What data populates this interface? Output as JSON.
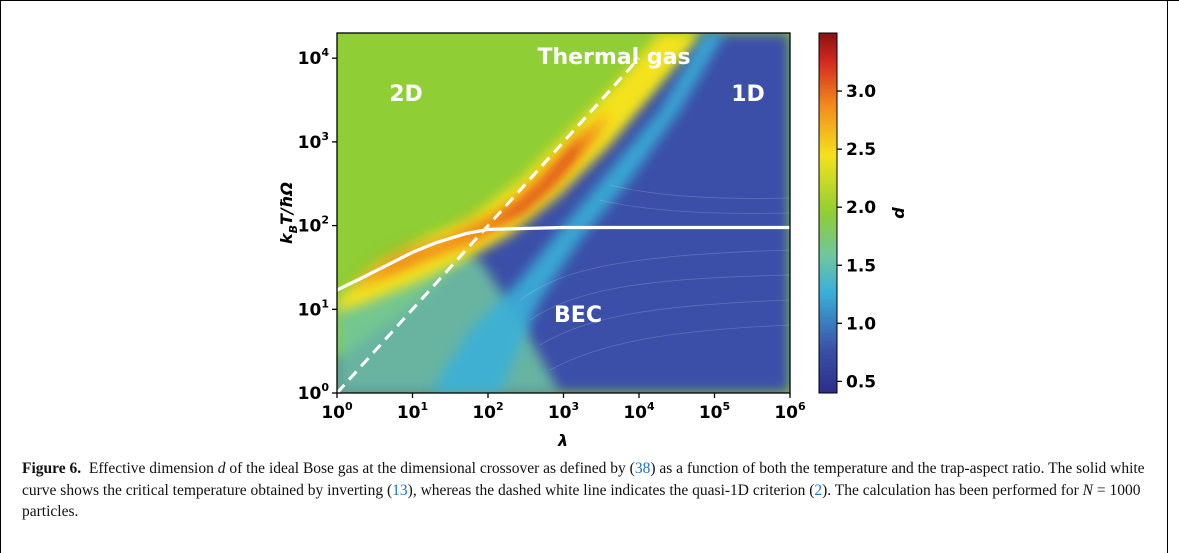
{
  "chart_data": {
    "type": "heatmap",
    "xlabel": "λ",
    "ylabel": "k_B T/ħΩ",
    "colorbar_label": "d",
    "x_scale": "log",
    "y_scale": "log",
    "xlim": [
      1,
      1000000
    ],
    "ylim": [
      1,
      20000
    ],
    "clim": [
      0.4,
      3.5
    ],
    "x_ticks": [
      "10^0",
      "10^1",
      "10^2",
      "10^3",
      "10^4",
      "10^5",
      "10^6"
    ],
    "y_ticks": [
      "10^0",
      "10^1",
      "10^2",
      "10^3",
      "10^4"
    ],
    "colorbar_ticks": [
      "0.5",
      "1.0",
      "1.5",
      "2.0",
      "2.5",
      "3.0"
    ],
    "annotations": [
      "2D",
      "1D",
      "Thermal gas",
      "BEC"
    ],
    "curves": {
      "critical_temperature_solid": {
        "x": [
          1,
          2,
          5,
          10,
          20,
          50,
          100,
          1000,
          10000,
          100000,
          1000000
        ],
        "y": [
          17,
          23,
          35,
          48,
          62,
          80,
          90,
          95,
          95,
          95,
          95
        ]
      },
      "quasi_1d_criterion_dashed": {
        "x": [
          1,
          10,
          100,
          1000,
          10000
        ],
        "y": [
          1,
          10,
          100,
          1000,
          10000
        ]
      }
    }
  },
  "caption": {
    "label": "Figure 6.",
    "text_1": "Effective dimension ",
    "symbol_d": "d",
    "text_2": " of the ideal Bose gas at the dimensional crossover as defined by (",
    "ref_38": "38",
    "text_3": ") as a function of both the temperature and the trap-aspect ratio. The solid white curve shows the critical temperature obtained by inverting (",
    "ref_13": "13",
    "text_4": "), whereas the dashed white line indicates the quasi-1D criterion (",
    "ref_2": "2",
    "text_5": "). The calculation has been performed for ",
    "symbol_N": "N",
    "text_6": " = 1000 particles."
  },
  "colors": {
    "green_region": "#8fce34",
    "blue_region": "#3b50a8",
    "ridge_red": "#d42a1e",
    "ridge_yellow": "#f5e21c",
    "ridge_cyan": "#3ab0d8"
  }
}
